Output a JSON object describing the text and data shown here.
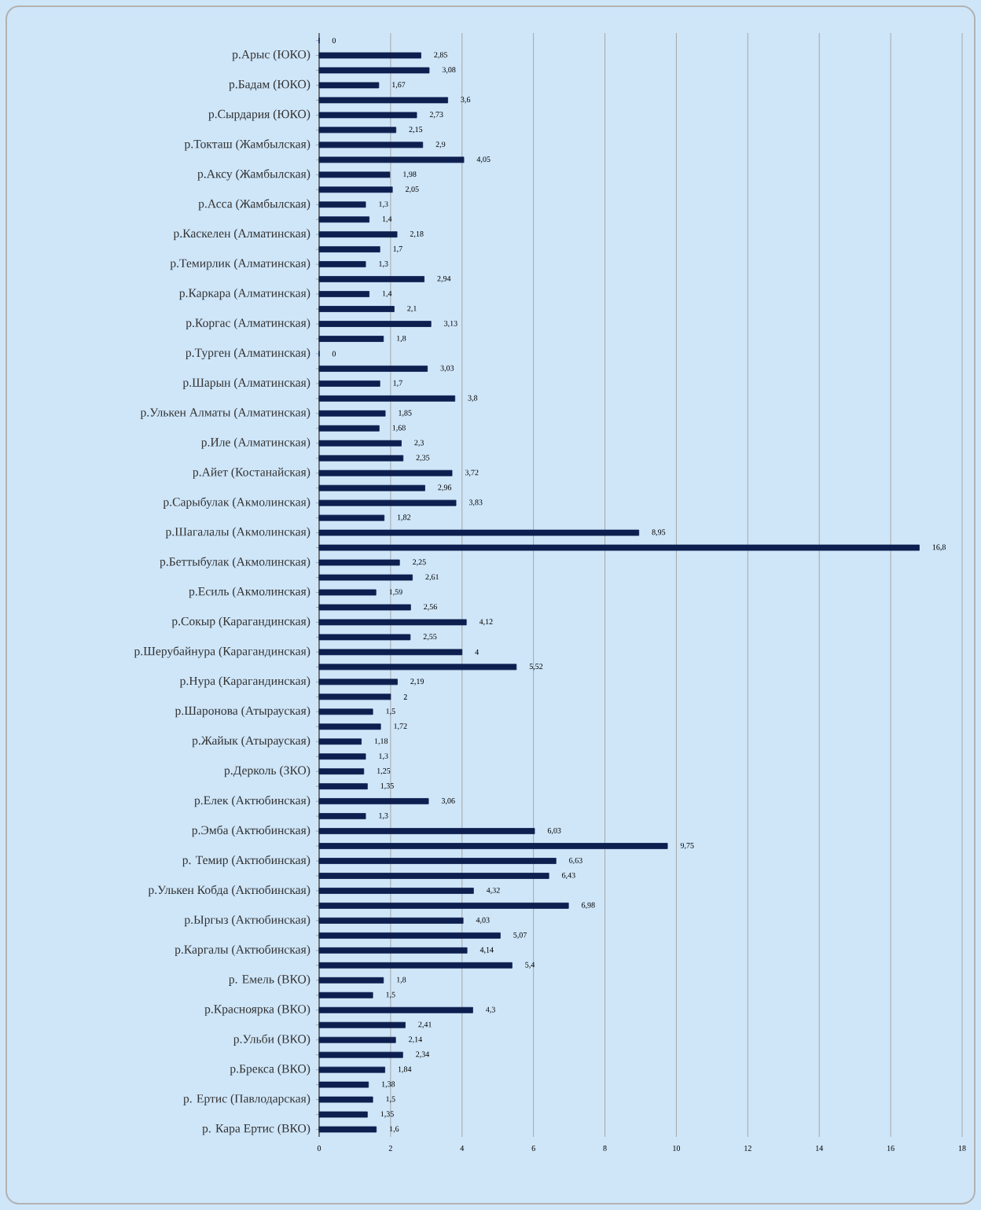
{
  "chart_data": {
    "type": "bar",
    "orientation": "horizontal",
    "color": "#0d1f4f",
    "grid": "x",
    "xlim": [
      0,
      18
    ],
    "xticks": [
      0,
      2,
      4,
      6,
      8,
      10,
      12,
      14,
      16,
      18
    ],
    "categories": [
      null,
      "р.Арыс (ЮКО)",
      null,
      "р.Бадам (ЮКО)",
      null,
      "р.Сырдария (ЮКО)",
      null,
      "р.Токташ (Жамбылская)",
      null,
      "р.Аксу (Жамбылская)",
      null,
      "р.Асса (Жамбылская)",
      null,
      "р.Каскелен (Алматинская)",
      null,
      "р.Темирлик (Алматинская)",
      null,
      "р.Каркара (Алматинская)",
      null,
      "р.Коргас (Алматинская)",
      null,
      "р.Турген (Алматинская)",
      null,
      "р.Шарын (Алматинская)",
      null,
      "р.Улькен Алматы (Алматинская)",
      null,
      "р.Иле (Алматинская)",
      null,
      "р.Айет (Костанайская)",
      null,
      "р.Сарыбулак (Акмолинская)",
      null,
      "р.Шагалалы (Акмолинская)",
      null,
      "р.Беттыбулак (Акмолинская)",
      null,
      "р.Есиль (Акмолинская)",
      null,
      "р.Сокыр (Карагандинская)",
      null,
      "р.Шерубайнура (Карагандинская)",
      null,
      "р.Нура (Карагандинская)",
      null,
      "р.Шаронова (Атырауская)",
      null,
      "р.Жайык (Атырауская)",
      null,
      "р.Дерколь (ЗКО)",
      null,
      "р.Елек (Актюбинская)",
      null,
      "р.Эмба (Актюбинская)",
      null,
      "р. Темир (Актюбинская)",
      null,
      "р.Улькен Кобда (Актюбинская)",
      null,
      "р.Ыргыз (Актюбинская)",
      null,
      "р.Каргалы (Актюбинская)",
      null,
      "р. Емель (ВКО)",
      null,
      "р.Красноярка (ВКО)",
      null,
      "р.Ульби (ВКО)",
      null,
      "р.Брекса (ВКО)",
      null,
      "р. Ертис (Павлодарская)",
      null,
      "р. Кара Ертис (ВКО)"
    ],
    "values": [
      0,
      2.85,
      3.08,
      1.67,
      3.6,
      2.73,
      2.15,
      2.9,
      4.05,
      1.98,
      2.05,
      1.3,
      1.4,
      2.18,
      1.7,
      1.3,
      2.94,
      1.4,
      2.1,
      3.13,
      1.8,
      0,
      3.03,
      1.7,
      3.8,
      1.85,
      1.68,
      2.3,
      2.35,
      3.72,
      2.96,
      3.83,
      1.82,
      8.95,
      16.8,
      2.25,
      2.61,
      1.59,
      2.56,
      4.12,
      2.55,
      4,
      5.52,
      2.19,
      2,
      1.5,
      1.72,
      1.18,
      1.3,
      1.25,
      1.35,
      3.06,
      1.3,
      6.03,
      9.75,
      6.63,
      6.43,
      4.32,
      6.98,
      4.03,
      5.07,
      4.14,
      5.4,
      1.8,
      1.5,
      4.3,
      2.41,
      2.14,
      2.34,
      1.84,
      1.38,
      1.5,
      1.35,
      1.6
    ],
    "value_labels": [
      "0",
      "2,85",
      "3,08",
      "1,67",
      "3,6",
      "2,73",
      "2,15",
      "2,9",
      "4,05",
      "1,98",
      "2,05",
      "1,3",
      "1,4",
      "2,18",
      "1,7",
      "1,3",
      "2,94",
      "1,4",
      "2,1",
      "3,13",
      "1,8",
      "0",
      "3,03",
      "1,7",
      "3,8",
      "1,85",
      "1,68",
      "2,3",
      "2,35",
      "3,72",
      "2,96",
      "3,83",
      "1,82",
      "8,95",
      "16,8",
      "2,25",
      "2,61",
      "1,59",
      "2,56",
      "4,12",
      "2,55",
      "4",
      "5,52",
      "2,19",
      "2",
      "1,5",
      "1,72",
      "1,18",
      "1,3",
      "1,25",
      "1,35",
      "3,06",
      "1,3",
      "6,03",
      "9,75",
      "6,63",
      "6,43",
      "4,32",
      "6,98",
      "4,03",
      "5,07",
      "4,14",
      "5,4",
      "1,8",
      "1,5",
      "4,3",
      "2,41",
      "2,14",
      "2,34",
      "1,84",
      "1,38",
      "1,5",
      "1,35",
      "1,6"
    ]
  }
}
